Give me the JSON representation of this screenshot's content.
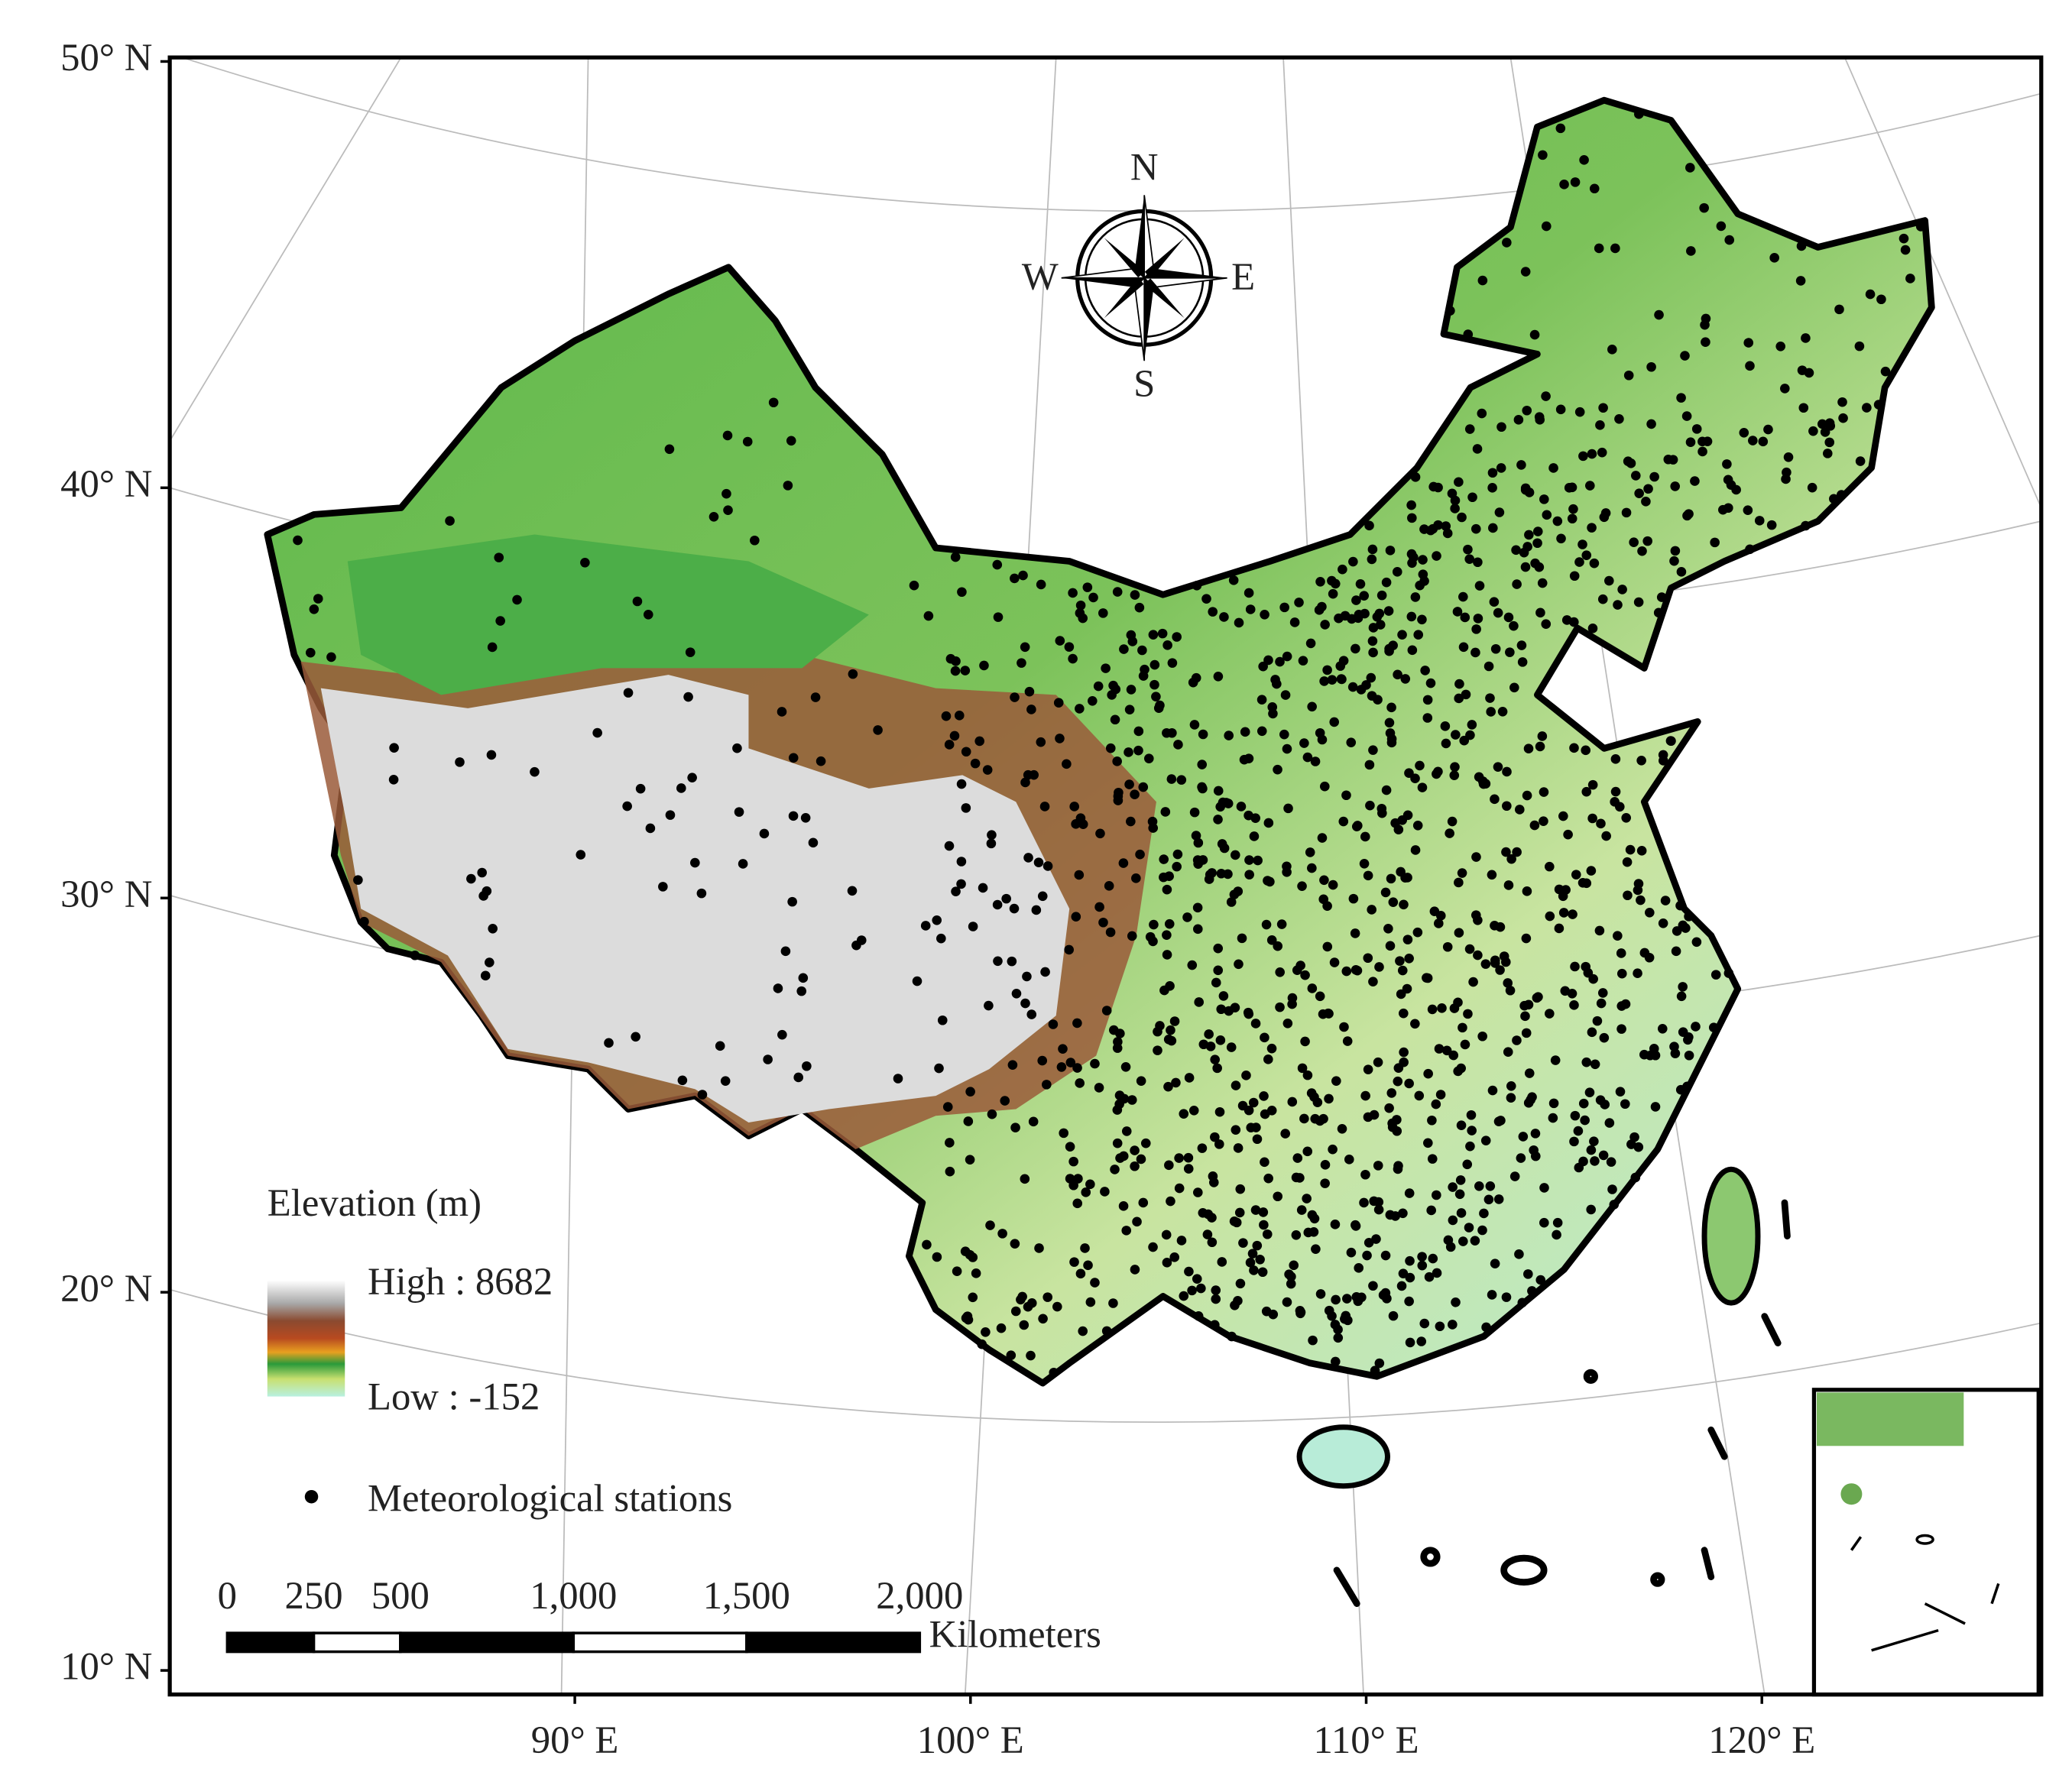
{
  "map": {
    "lat_ticks": [
      {
        "value": 50,
        "label": "50° N"
      },
      {
        "value": 40,
        "label": "40° N"
      },
      {
        "value": 30,
        "label": "30° N"
      },
      {
        "value": 20,
        "label": "20° N"
      },
      {
        "value": 10,
        "label": "10° N"
      }
    ],
    "lon_ticks": [
      {
        "value": 90,
        "label": "90° E"
      },
      {
        "value": 100,
        "label": "100° E"
      },
      {
        "value": 110,
        "label": "110° E"
      },
      {
        "value": 120,
        "label": "120° E"
      }
    ],
    "compass": {
      "n": "N",
      "s": "S",
      "w": "W",
      "e": "E"
    },
    "legend": {
      "title": "Elevation (m)",
      "high": "High : 8682",
      "low": "Low : -152",
      "stations": "Meteorological stations"
    },
    "scale_bar": {
      "ticks": [
        0,
        250,
        500,
        {
          "value": 1000,
          "label": "1,000"
        },
        {
          "value": 1500,
          "label": "1,500"
        },
        {
          "value": 2000,
          "label": "2,000"
        }
      ],
      "unit": "Kilometers"
    }
  }
}
